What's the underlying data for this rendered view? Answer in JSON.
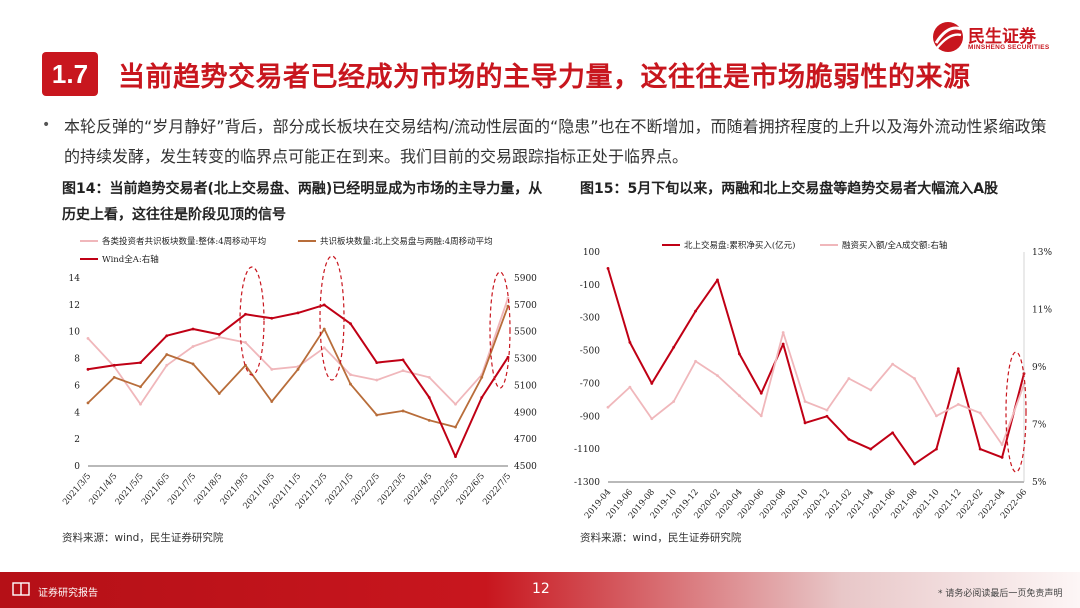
{
  "header": {
    "section_number": "1.7",
    "title": "当前趋势交易者已经成为市场的主导力量，这往往是市场脆弱性的来源",
    "logo_name": "民生证券",
    "logo_en": "MINSHENG SECURITIES"
  },
  "body": {
    "bullet": "•",
    "text": "本轮反弹的“岁月静好”背后，部分成长板块在交易结构/流动性层面的“隐患”也在不断增加，而随着拥挤程度的上升以及海外流动性紧缩政策的持续发酵，发生转变的临界点可能正在到来。我们目前的交易跟踪指标正处于临界点。"
  },
  "figures": [
    {
      "title": "图14：当前趋势交易者(北上交易盘、两融)已经明显成为市场的主导力量，从历史上看，这往往是阶段见顶的信号",
      "source": "资料来源：wind，民生证券研究院"
    },
    {
      "title": "图15：5月下旬以来，两融和北上交易盘等趋势交易者大幅流入A股",
      "source": "资料来源：wind，民生证券研究院"
    }
  ],
  "chart_data": [
    {
      "type": "line",
      "title": "",
      "x": [
        "2021/3/5",
        "2021/4/5",
        "2021/5/5",
        "2021/6/5",
        "2021/7/5",
        "2021/8/5",
        "2021/9/5",
        "2021/10/5",
        "2021/11/5",
        "2021/12/5",
        "2022/1/5",
        "2022/2/5",
        "2022/3/5",
        "2022/4/5",
        "2022/5/5",
        "2022/6/5",
        "2022/7/5"
      ],
      "ylim_left": [
        0,
        14
      ],
      "yticks_left": [
        "0",
        "2",
        "4",
        "6",
        "8",
        "10",
        "12",
        "14"
      ],
      "ylim_right": [
        4500,
        5900
      ],
      "yticks_right": [
        "4500",
        "4700",
        "4900",
        "5100",
        "5300",
        "5500",
        "5700",
        "5900"
      ],
      "series": [
        {
          "name": "各类投资者共识板块数量:整体:4周移动平均",
          "axis": "left",
          "color": "#f0b7bb",
          "values": [
            9.5,
            7.4,
            4.6,
            7.5,
            8.9,
            9.6,
            9.2,
            7.2,
            7.4,
            8.8,
            6.8,
            6.4,
            7.1,
            6.6,
            4.6,
            6.8,
            12.5
          ]
        },
        {
          "name": "共识板块数量:北上交易盘与两融:4周移动平均",
          "axis": "left",
          "color": "#b86d3a",
          "values": [
            4.7,
            6.6,
            5.9,
            8.3,
            7.6,
            5.4,
            7.5,
            4.8,
            7.2,
            10.2,
            6.1,
            3.8,
            4.1,
            3.4,
            2.9,
            6.6,
            11.9
          ]
        },
        {
          "name": "Wind全A:右轴",
          "axis": "right",
          "color": "#c00015",
          "values": [
            5220,
            5250,
            5270,
            5470,
            5520,
            5480,
            5630,
            5600,
            5640,
            5700,
            5560,
            5270,
            5290,
            5010,
            4570,
            5010,
            5310
          ]
        }
      ]
    },
    {
      "type": "line",
      "title": "",
      "x": [
        "2019-04",
        "2019-06",
        "2019-08",
        "2019-10",
        "2019-12",
        "2020-02",
        "2020-04",
        "2020-06",
        "2020-08",
        "2020-10",
        "2020-12",
        "2021-02",
        "2021-04",
        "2021-06",
        "2021-08",
        "2021-10",
        "2021-12",
        "2022-02",
        "2022-04",
        "2022-06"
      ],
      "ylim_left": [
        -1300,
        100
      ],
      "yticks_left": [
        "100",
        "-100",
        "-300",
        "-500",
        "-700",
        "-900",
        "-1100",
        "-1300"
      ],
      "ylim_right": [
        5,
        13
      ],
      "yticks_right": [
        "13%",
        "11%",
        "9%",
        "7%",
        "5%"
      ],
      "series": [
        {
          "name": "北上交易盘:累积净买入(亿元)",
          "axis": "left",
          "color": "#c00015",
          "values": [
            0,
            -450,
            -700,
            -480,
            -260,
            -70,
            -520,
            -760,
            -460,
            -940,
            -900,
            -1040,
            -1100,
            -1000,
            -1190,
            -1100,
            -610,
            -1100,
            -1150,
            -640
          ]
        },
        {
          "name": "融资买入额/全A成交额:右轴",
          "axis": "right",
          "color": "#f0b7bb",
          "values": [
            7.6,
            8.3,
            7.2,
            7.8,
            9.2,
            8.7,
            8.0,
            7.3,
            10.2,
            7.8,
            7.5,
            8.6,
            8.2,
            9.1,
            8.6,
            7.3,
            7.7,
            7.4,
            6.3,
            8.4
          ]
        }
      ]
    }
  ]
}
